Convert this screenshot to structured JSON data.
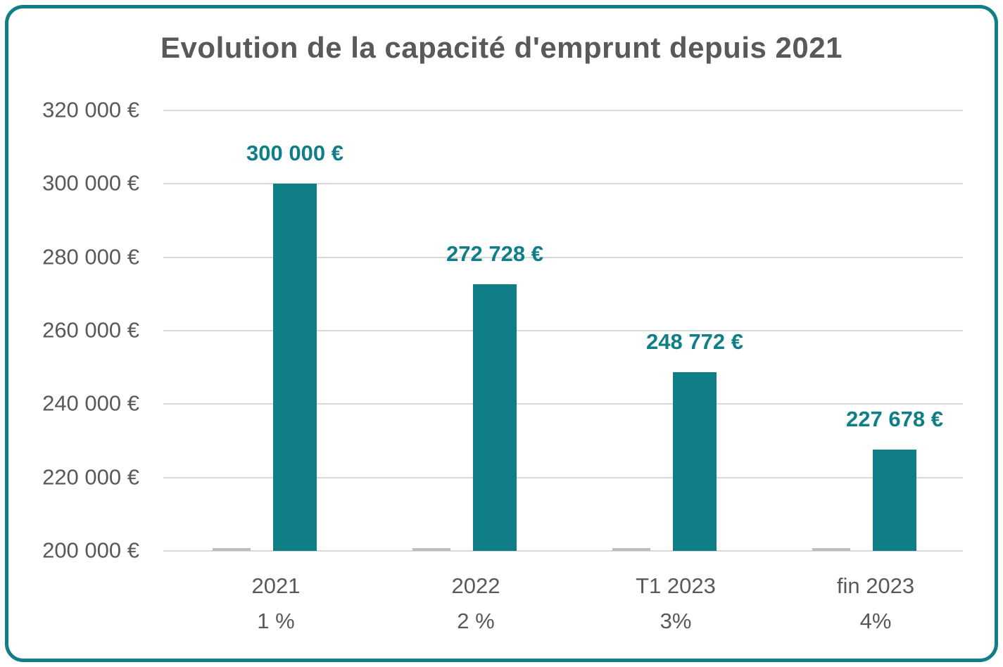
{
  "chart_data": {
    "type": "bar",
    "title": "Evolution de la capacité d'emprunt depuis 2021",
    "categories": [
      {
        "line1": "2021",
        "line2": "1 %"
      },
      {
        "line1": "2022",
        "line2": "2 %"
      },
      {
        "line1": "T1 2023",
        "line2": "3%"
      },
      {
        "line1": "fin 2023",
        "line2": "4%"
      }
    ],
    "values": [
      300000,
      272728,
      248772,
      227678
    ],
    "data_labels": [
      "300 000 €",
      "272 728 €",
      "248 772 €",
      "227 678 €"
    ],
    "y_ticks": [
      320000,
      300000,
      280000,
      260000,
      240000,
      220000,
      200000
    ],
    "y_tick_labels": [
      "320 000 €",
      "300 000 €",
      "280 000 €",
      "260 000 €",
      "240 000 €",
      "220 000 €",
      "200 000 €"
    ],
    "ylim": [
      200000,
      320000
    ],
    "xlabel": "",
    "ylabel": "",
    "grid": true,
    "legend": "none",
    "bar_color": "#0f7e87",
    "data_label_color": "#0f7e87",
    "axis_text_color": "#595959",
    "grid_color": "#d9d9d9",
    "baseline_dash_color": "#bdbdbd",
    "frame_border_color": "#0f7e87"
  }
}
